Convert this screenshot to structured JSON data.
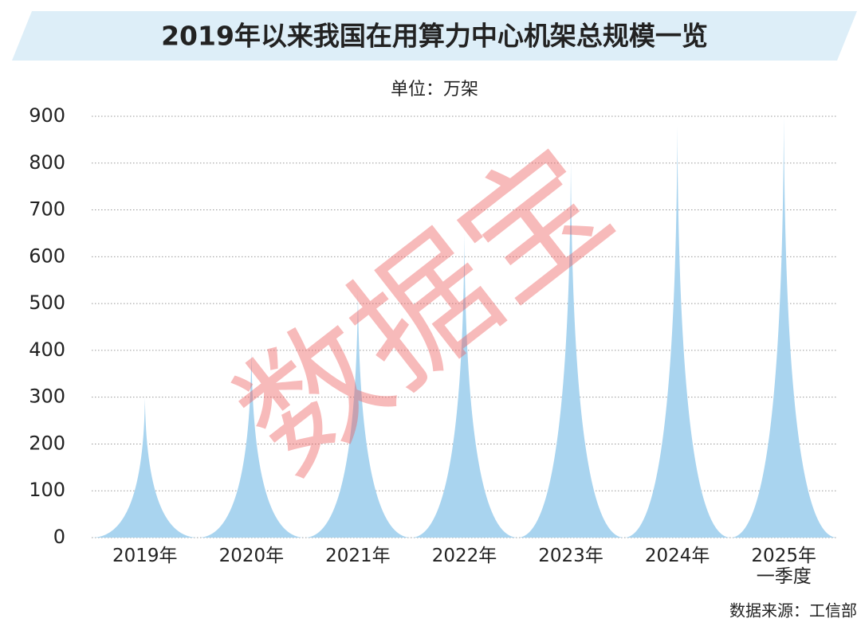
{
  "chart_data": {
    "type": "spike",
    "title": "2019年以来我国在用算力中心机架总规模一览",
    "unit": "单位：万架",
    "categories": [
      "2019年",
      "2020年",
      "2021年",
      "2022年",
      "2023年",
      "2024年",
      "2025年\n一季度"
    ],
    "values": [
      300,
      400,
      530,
      650,
      810,
      880,
      900
    ],
    "color": "#a9d4ef",
    "ylim": [
      0,
      900
    ],
    "yticks": [
      0,
      100,
      200,
      300,
      400,
      500,
      600,
      700,
      800,
      900
    ],
    "grid": true,
    "watermark": "数据宝",
    "source": "数据来源：工信部"
  }
}
